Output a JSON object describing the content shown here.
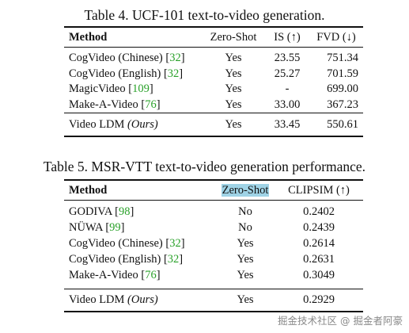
{
  "table4": {
    "caption": "Table 4. UCF-101 text-to-video generation.",
    "headers": {
      "method": "Method",
      "zero_shot": "Zero-Shot",
      "is": "IS (↑)",
      "fvd": "FVD (↓)"
    },
    "rows": [
      {
        "method": "CogVideo (Chinese)",
        "cite": "32",
        "zero_shot": "Yes",
        "is": "23.55",
        "fvd": "751.34"
      },
      {
        "method": "CogVideo (English)",
        "cite": "32",
        "zero_shot": "Yes",
        "is": "25.27",
        "fvd": "701.59"
      },
      {
        "method": "MagicVideo",
        "cite": "109",
        "zero_shot": "Yes",
        "is": "-",
        "fvd": "699.00"
      },
      {
        "method": "Make-A-Video",
        "cite": "76",
        "zero_shot": "Yes",
        "is": "33.00",
        "fvd": "367.23"
      }
    ],
    "ours": {
      "method": "Video LDM",
      "tag": "(Ours)",
      "zero_shot": "Yes",
      "is": "33.45",
      "fvd": "550.61"
    }
  },
  "table5": {
    "caption": "Table 5. MSR-VTT text-to-video generation performance.",
    "headers": {
      "method": "Method",
      "zero_shot": "Zero-Shot",
      "clipsim": "CLIPSIM (↑)"
    },
    "rows": [
      {
        "method": "GODIVA",
        "cite": "98",
        "zero_shot": "No",
        "clipsim": "0.2402"
      },
      {
        "method": "NÜWA",
        "cite": "99",
        "zero_shot": "No",
        "clipsim": "0.2439"
      },
      {
        "method": "CogVideo (Chinese)",
        "cite": "32",
        "zero_shot": "Yes",
        "clipsim": "0.2614"
      },
      {
        "method": "CogVideo (English)",
        "cite": "32",
        "zero_shot": "Yes",
        "clipsim": "0.2631"
      },
      {
        "method": "Make-A-Video",
        "cite": "76",
        "zero_shot": "Yes",
        "clipsim": "0.3049"
      }
    ],
    "ours": {
      "method": "Video LDM",
      "tag": "(Ours)",
      "zero_shot": "Yes",
      "clipsim": "0.2929"
    }
  },
  "watermark": "掘金技术社区 @ 掘金者阿豪"
}
